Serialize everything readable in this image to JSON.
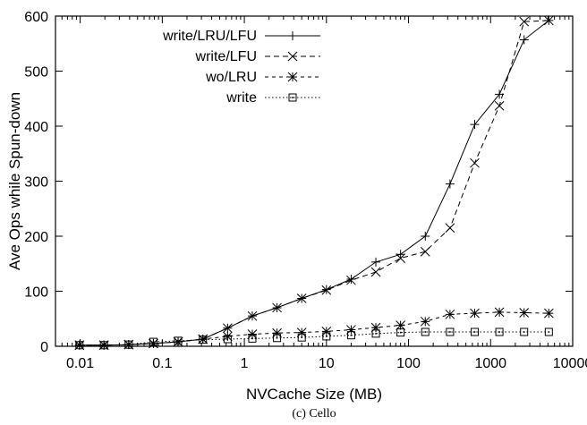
{
  "chart_data": {
    "type": "line",
    "title": "",
    "caption": "(c) Cello",
    "xlabel": "NVCache Size (MB)",
    "ylabel": "Ave Ops while Spun-down",
    "x_scale": "log",
    "xlim": [
      0.005,
      10000
    ],
    "ylim": [
      0,
      600
    ],
    "x_ticks": [
      0.01,
      0.1,
      1,
      10,
      100,
      1000,
      10000
    ],
    "x_tick_labels": [
      "0.01",
      "0.1",
      "1",
      "10",
      "100",
      "1000",
      "10000"
    ],
    "y_ticks": [
      0,
      100,
      200,
      300,
      400,
      500,
      600
    ],
    "y_tick_labels": [
      "0",
      "100",
      "200",
      "300",
      "400",
      "500",
      "600"
    ],
    "grid": false,
    "legend_position": "top-left",
    "x": [
      0.0098,
      0.0195,
      0.039,
      0.078,
      0.156,
      0.3125,
      0.625,
      1.25,
      2.5,
      5,
      10,
      20,
      40,
      80,
      160,
      320,
      640,
      1280,
      2560,
      5120
    ],
    "series": [
      {
        "name": "write/LRU/LFU",
        "line_style": "solid",
        "marker": "plus",
        "values": [
          2,
          2,
          3,
          5,
          8,
          13,
          33,
          55,
          70,
          87,
          103,
          122,
          153,
          167,
          200,
          295,
          403,
          458,
          557,
          592
        ]
      },
      {
        "name": "write/LFU",
        "line_style": "dashed",
        "marker": "cross",
        "values": [
          2,
          2,
          3,
          5,
          8,
          13,
          33,
          55,
          70,
          87,
          102,
          120,
          135,
          160,
          172,
          215,
          333,
          437,
          590,
          592
        ]
      },
      {
        "name": "wo/LRU",
        "line_style": "short-dashed",
        "marker": "star",
        "values": [
          2,
          2,
          3,
          5,
          8,
          13,
          18,
          22,
          24,
          25,
          27,
          30,
          34,
          38,
          45,
          58,
          60,
          62,
          61,
          60
        ]
      },
      {
        "name": "write",
        "line_style": "dotted",
        "marker": "square",
        "values": [
          2,
          2,
          3,
          8,
          10,
          12,
          13,
          14,
          15,
          16,
          18,
          20,
          23,
          25,
          26,
          26,
          26,
          26,
          26,
          26
        ]
      }
    ]
  }
}
